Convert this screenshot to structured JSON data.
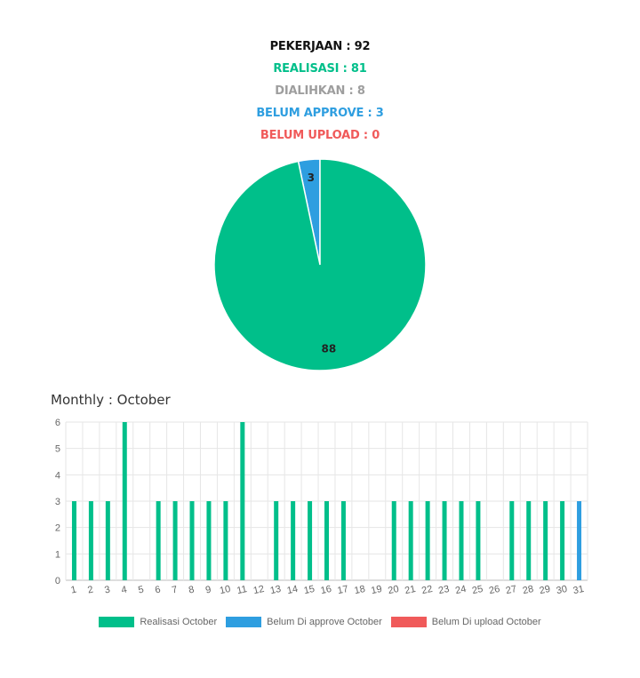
{
  "summary": {
    "pekerjaan": "PEKERJAAN : 92",
    "realisasi": "REALISASI : 81",
    "dialihkan": "DIALIHKAN : 8",
    "belum_approve": "BELUM APPROVE : 3",
    "belum_upload": "BELUM UPLOAD : 0"
  },
  "colors": {
    "pekerjaan": "#111111",
    "realisasi": "#00bf8a",
    "dialihkan": "#9e9e9e",
    "belum_approve": "#2e9ee0",
    "belum_upload": "#f05a5a"
  },
  "monthly_title": "Monthly : October",
  "chart_data": [
    {
      "type": "pie",
      "slices": [
        {
          "label": "",
          "value": 88,
          "color": "#00bf8a"
        },
        {
          "label": "",
          "value": 3,
          "color": "#2e9ee0"
        }
      ],
      "data_labels": [
        "88",
        "3"
      ]
    },
    {
      "type": "bar",
      "title": "",
      "categories": [
        "1",
        "2",
        "3",
        "4",
        "5",
        "6",
        "7",
        "8",
        "9",
        "10",
        "11",
        "12",
        "13",
        "14",
        "15",
        "16",
        "17",
        "18",
        "19",
        "20",
        "21",
        "22",
        "23",
        "24",
        "25",
        "26",
        "27",
        "28",
        "29",
        "30",
        "31"
      ],
      "series": [
        {
          "name": "Realisasi October",
          "color": "#00bf8a",
          "values": [
            3,
            3,
            3,
            6,
            0,
            3,
            3,
            3,
            3,
            3,
            6,
            0,
            3,
            3,
            3,
            3,
            3,
            0,
            0,
            3,
            3,
            3,
            3,
            3,
            3,
            0,
            3,
            3,
            3,
            3,
            0
          ]
        },
        {
          "name": "Belum Di approve October",
          "color": "#2e9ee0",
          "values": [
            0,
            0,
            0,
            0,
            0,
            0,
            0,
            0,
            0,
            0,
            0,
            0,
            0,
            0,
            0,
            0,
            0,
            0,
            0,
            0,
            0,
            0,
            0,
            0,
            0,
            0,
            0,
            0,
            0,
            0,
            3
          ]
        },
        {
          "name": "Belum Di upload October",
          "color": "#f05a5a",
          "values": [
            0,
            0,
            0,
            0,
            0,
            0,
            0,
            0,
            0,
            0,
            0,
            0,
            0,
            0,
            0,
            0,
            0,
            0,
            0,
            0,
            0,
            0,
            0,
            0,
            0,
            0,
            0,
            0,
            0,
            0,
            0
          ]
        }
      ],
      "ylim": [
        0,
        6
      ],
      "yticks": [
        "0",
        "1",
        "2",
        "3",
        "4",
        "5",
        "6"
      ],
      "grid": true,
      "legend": "bottom"
    }
  ]
}
